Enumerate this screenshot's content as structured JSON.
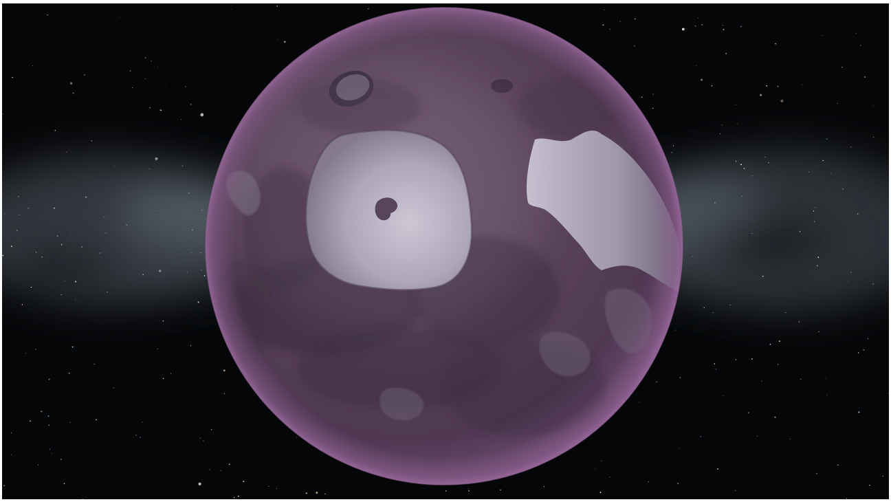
{
  "scene": {
    "type": "3d-planet-viewer",
    "space_color": "#050608",
    "milky_way_color": "#7f8d99",
    "planet": {
      "body_color": "#5c4660",
      "rim_color": "#8a5f8c",
      "ice_cap_color": "#c7c0d0",
      "shadow_color": "#3a2a3e"
    }
  }
}
